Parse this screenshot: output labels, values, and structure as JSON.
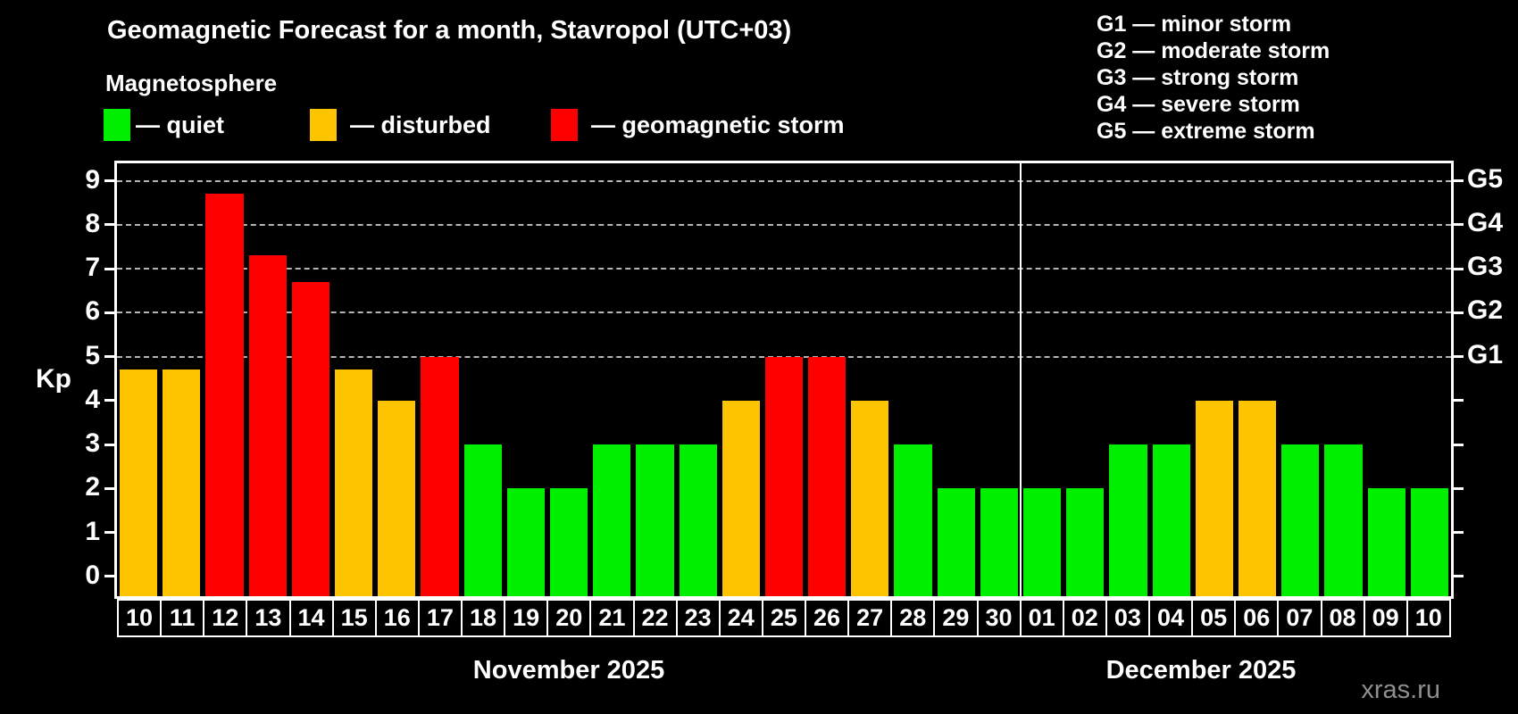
{
  "title": "Geomagnetic Forecast for a month, Stavropol (UTC+03)",
  "subtitle": "Magnetosphere",
  "legend": {
    "items": [
      {
        "name": "quiet",
        "label": "— quiet",
        "color": "#00ee00"
      },
      {
        "name": "disturbed",
        "label": "— disturbed",
        "color": "#ffc400"
      },
      {
        "name": "storm",
        "label": "— geomagnetic storm",
        "color": "#ff0000"
      }
    ]
  },
  "storm_scale_legend": [
    "G1 — minor storm",
    "G2 — moderate storm",
    "G3 — strong storm",
    "G4 — severe storm",
    "G5 — extreme storm"
  ],
  "watermark": "xras.ru",
  "chart_data": {
    "type": "bar",
    "title": "Geomagnetic Forecast for a month, Stavropol (UTC+03)",
    "subtitle": "Magnetosphere",
    "ylabel": "Kp",
    "ylim": [
      -0.45,
      9.4
    ],
    "y_ticks": [
      0,
      1,
      2,
      3,
      4,
      5,
      6,
      7,
      8,
      9
    ],
    "gridlines_at_kp": [
      5,
      6,
      7,
      8,
      9
    ],
    "grid": "dashed horizontal lines at storm levels only",
    "right_axis": [
      {
        "kp": 5,
        "label": "G1"
      },
      {
        "kp": 6,
        "label": "G2"
      },
      {
        "kp": 7,
        "label": "G3"
      },
      {
        "kp": 8,
        "label": "G4"
      },
      {
        "kp": 9,
        "label": "G5"
      }
    ],
    "status_colors": {
      "quiet": "#00ee00",
      "disturbed": "#ffc400",
      "storm": "#ff0000"
    },
    "months": [
      {
        "label": "November 2025",
        "bars": [
          {
            "day": "10",
            "kp": 4.7,
            "status": "disturbed"
          },
          {
            "day": "11",
            "kp": 4.7,
            "status": "disturbed"
          },
          {
            "day": "12",
            "kp": 8.7,
            "status": "storm"
          },
          {
            "day": "13",
            "kp": 7.3,
            "status": "storm"
          },
          {
            "day": "14",
            "kp": 6.7,
            "status": "storm"
          },
          {
            "day": "15",
            "kp": 4.7,
            "status": "disturbed"
          },
          {
            "day": "16",
            "kp": 4.0,
            "status": "disturbed"
          },
          {
            "day": "17",
            "kp": 5.0,
            "status": "storm"
          },
          {
            "day": "18",
            "kp": 3.0,
            "status": "quiet"
          },
          {
            "day": "19",
            "kp": 2.0,
            "status": "quiet"
          },
          {
            "day": "20",
            "kp": 2.0,
            "status": "quiet"
          },
          {
            "day": "21",
            "kp": 3.0,
            "status": "quiet"
          },
          {
            "day": "22",
            "kp": 3.0,
            "status": "quiet"
          },
          {
            "day": "23",
            "kp": 3.0,
            "status": "quiet"
          },
          {
            "day": "24",
            "kp": 4.0,
            "status": "disturbed"
          },
          {
            "day": "25",
            "kp": 5.0,
            "status": "storm"
          },
          {
            "day": "26",
            "kp": 5.0,
            "status": "storm"
          },
          {
            "day": "27",
            "kp": 4.0,
            "status": "disturbed"
          },
          {
            "day": "28",
            "kp": 3.0,
            "status": "quiet"
          },
          {
            "day": "29",
            "kp": 2.0,
            "status": "quiet"
          },
          {
            "day": "30",
            "kp": 2.0,
            "status": "quiet"
          }
        ]
      },
      {
        "label": "December 2025",
        "bars": [
          {
            "day": "01",
            "kp": 2.0,
            "status": "quiet"
          },
          {
            "day": "02",
            "kp": 2.0,
            "status": "quiet"
          },
          {
            "day": "03",
            "kp": 3.0,
            "status": "quiet"
          },
          {
            "day": "04",
            "kp": 3.0,
            "status": "quiet"
          },
          {
            "day": "05",
            "kp": 4.0,
            "status": "disturbed"
          },
          {
            "day": "06",
            "kp": 4.0,
            "status": "disturbed"
          },
          {
            "day": "07",
            "kp": 3.0,
            "status": "quiet"
          },
          {
            "day": "08",
            "kp": 3.0,
            "status": "quiet"
          },
          {
            "day": "09",
            "kp": 2.0,
            "status": "quiet"
          },
          {
            "day": "10",
            "kp": 2.0,
            "status": "quiet"
          }
        ]
      }
    ]
  }
}
